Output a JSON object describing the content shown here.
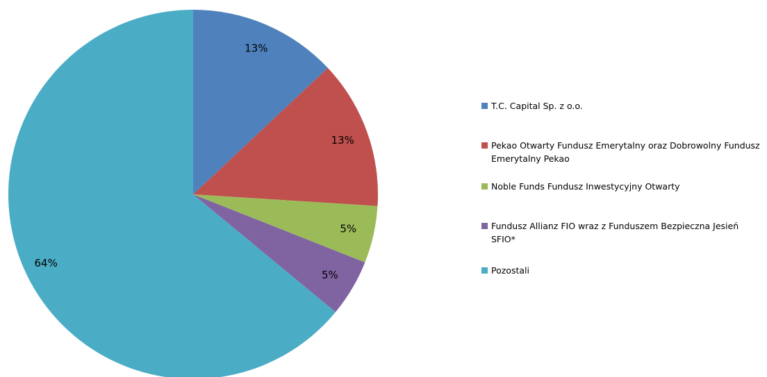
{
  "chart_data": {
    "type": "pie",
    "categories": [
      "T.C. Capital Sp. z o.o.",
      "Pekao Otwarty Fundusz Emerytalny oraz Dobrowolny Fundusz Emerytalny Pekao",
      "Noble Funds Fundusz Inwestycyjny Otwarty",
      "Fundusz Allianz FIO wraz z Funduszem Bezpieczna Jesień SFIO*",
      "Pozostali"
    ],
    "values": [
      13,
      13,
      5,
      5,
      64
    ],
    "value_labels": [
      "13%",
      "13%",
      "5%",
      "5%",
      "64%"
    ],
    "colors": [
      "#4f81bd",
      "#c0504d",
      "#9bbb59",
      "#8064a2",
      "#4bacc6"
    ],
    "legend": "right"
  }
}
